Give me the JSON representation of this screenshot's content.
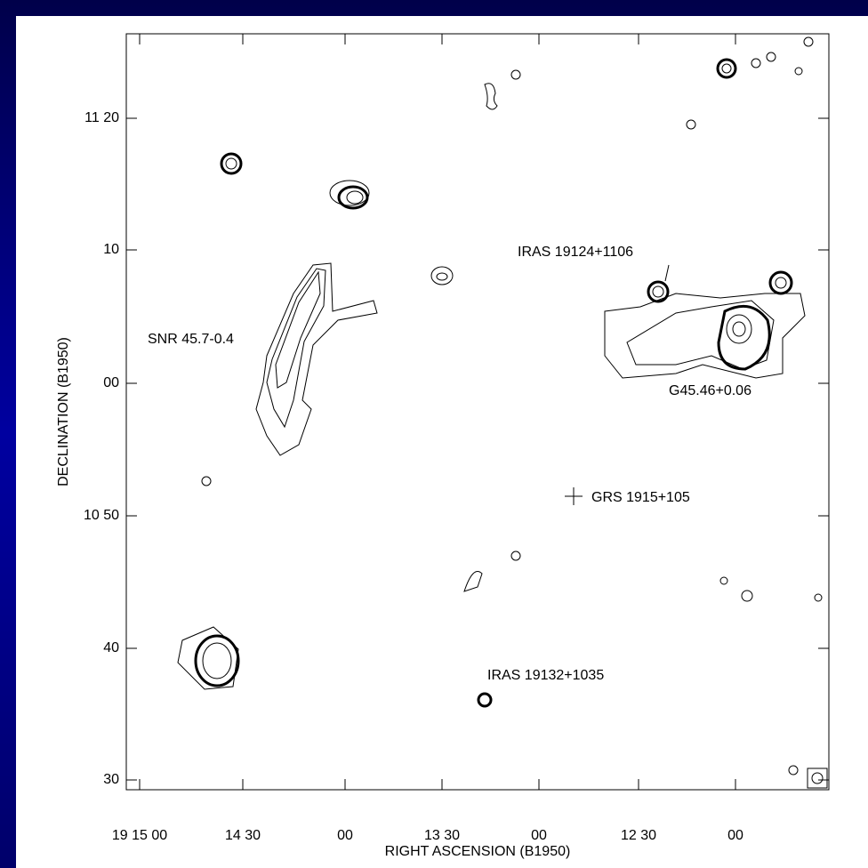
{
  "figure": {
    "xlabel": "RIGHT ASCENSION (B1950)",
    "ylabel": "DECLINATION (B1950)",
    "xticks": [
      "19 15 00",
      "14 30",
      "00",
      "13 30",
      "00",
      "12 30",
      "00"
    ],
    "yticks": [
      "11 20",
      "10",
      "00",
      "10 50",
      "40",
      "30"
    ],
    "annotations": [
      "IRAS 19124+1106",
      "SNR 45.7-0.4",
      "G45.46+0.06",
      "GRS 1915+105",
      "IRAS 19132+1035"
    ]
  }
}
